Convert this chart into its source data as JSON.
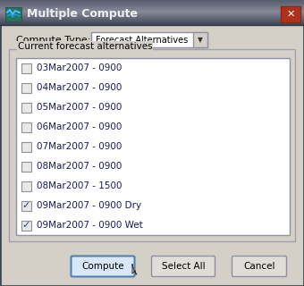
{
  "title": "Multiple Compute",
  "bg_color": "#d4d0c8",
  "title_bar_color": "#6a6a6a",
  "close_btn_color": "#b03020",
  "compute_type_label": "Compute Type:",
  "compute_type_value": "Forecast Alternatives",
  "group_label": "Current forecast alternatives",
  "items": [
    {
      "label": "03Mar2007 - 0900",
      "checked": false
    },
    {
      "label": "04Mar2007 - 0900",
      "checked": false
    },
    {
      "label": "05Mar2007 - 0900",
      "checked": false
    },
    {
      "label": "06Mar2007 - 0900",
      "checked": false
    },
    {
      "label": "07Mar2007 - 0900",
      "checked": false
    },
    {
      "label": "08Mar2007 - 0900",
      "checked": false
    },
    {
      "label": "08Mar2007 - 1500",
      "checked": false
    },
    {
      "label": "09Mar2007 - 0900 Dry",
      "checked": true
    },
    {
      "label": "09Mar2007 - 0900 Wet",
      "checked": true
    }
  ],
  "text_color": "#000000",
  "item_text_color": "#1a1a5a",
  "checkbox_border": "#909090",
  "checkbox_bg": "#e8e8e8",
  "checkbox_check_color": "#2244aa",
  "listbox_bg": "#ffffff",
  "listbox_border": "#9090a0",
  "group_border": "#a0a0b0",
  "dropdown_bg": "#ffffff",
  "dropdown_border": "#9090a0",
  "dropdown_arrow_bg": "#d4d0c8",
  "button_bg": "#e0ddd8",
  "button_border": "#9090a0",
  "compute_btn_bg": "#d8e8f8",
  "compute_btn_border": "#5080b0",
  "outer_border": "#404858",
  "title_bar_start": "#404858",
  "title_bar_end": "#808898"
}
